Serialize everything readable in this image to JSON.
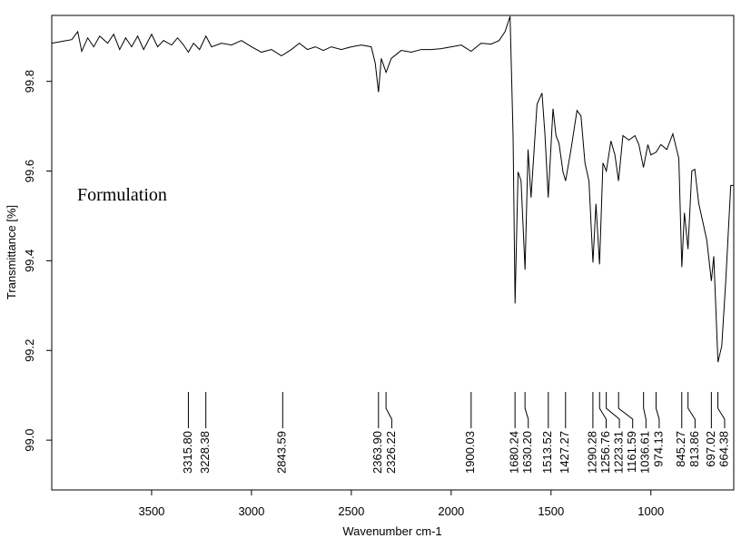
{
  "chart_data": {
    "type": "line",
    "annotation": "Formulation",
    "x_label": "Wavenumber cm-1",
    "y_label": "Transmittance [%]",
    "xlim": [
      4000,
      585
    ],
    "ylim": [
      98.889,
      99.947
    ],
    "xticks": [
      3500,
      3000,
      2500,
      2000,
      1500,
      1000
    ],
    "yticks": [
      {
        "value": 99,
        "label": "99.0"
      },
      99.2,
      99.4,
      99.6,
      99.8
    ],
    "x": [
      4000,
      3950,
      3900,
      3870,
      3850,
      3820,
      3790,
      3760,
      3720,
      3690,
      3660,
      3630,
      3600,
      3570,
      3540,
      3500,
      3470,
      3440,
      3400,
      3370,
      3340,
      3316,
      3290,
      3260,
      3228,
      3200,
      3150,
      3100,
      3050,
      3000,
      2950,
      2900,
      2850,
      2800,
      2760,
      2720,
      2680,
      2640,
      2600,
      2550,
      2500,
      2450,
      2400,
      2380,
      2364,
      2350,
      2326,
      2300,
      2250,
      2200,
      2150,
      2100,
      2050,
      2000,
      1950,
      1900,
      1850,
      1800,
      1760,
      1730,
      1705,
      1690,
      1680,
      1665,
      1650,
      1630,
      1615,
      1600,
      1570,
      1545,
      1530,
      1514,
      1490,
      1475,
      1460,
      1440,
      1427,
      1400,
      1370,
      1350,
      1330,
      1310,
      1290,
      1275,
      1257,
      1240,
      1223,
      1200,
      1180,
      1162,
      1140,
      1110,
      1080,
      1060,
      1037,
      1015,
      1000,
      974,
      950,
      920,
      890,
      860,
      845,
      832,
      814,
      795,
      780,
      760,
      740,
      720,
      697,
      685,
      664,
      645,
      625,
      600,
      585
    ],
    "series": [
      {
        "color": "#000000",
        "values": [
          99.885,
          99.889,
          99.893,
          99.911,
          99.867,
          99.897,
          99.877,
          99.901,
          99.885,
          99.905,
          99.871,
          99.897,
          99.877,
          99.901,
          99.871,
          99.905,
          99.877,
          99.891,
          99.881,
          99.897,
          99.881,
          99.865,
          99.885,
          99.871,
          99.901,
          99.877,
          99.885,
          99.881,
          99.891,
          99.877,
          99.865,
          99.871,
          99.857,
          99.871,
          99.885,
          99.871,
          99.877,
          99.869,
          99.877,
          99.871,
          99.877,
          99.881,
          99.877,
          99.84,
          99.776,
          99.851,
          99.82,
          99.851,
          99.869,
          99.865,
          99.871,
          99.871,
          99.873,
          99.877,
          99.881,
          99.867,
          99.885,
          99.883,
          99.891,
          99.911,
          99.945,
          99.679,
          99.305,
          99.598,
          99.578,
          99.38,
          99.648,
          99.541,
          99.749,
          99.774,
          99.679,
          99.541,
          99.739,
          99.679,
          99.662,
          99.598,
          99.578,
          99.648,
          99.735,
          99.723,
          99.618,
          99.578,
          99.396,
          99.527,
          99.392,
          99.618,
          99.6,
          99.667,
          99.636,
          99.578,
          99.679,
          99.669,
          99.679,
          99.659,
          99.608,
          99.659,
          99.636,
          99.642,
          99.659,
          99.648,
          99.683,
          99.628,
          99.386,
          99.507,
          99.426,
          99.6,
          99.604,
          99.527,
          99.487,
          99.446,
          99.355,
          99.41,
          99.174,
          99.21,
          99.355,
          99.568,
          99.568
        ]
      }
    ],
    "peaks": [
      {
        "value": 3315.8,
        "label": "3315.80"
      },
      {
        "value": 3228.38,
        "label": "3228.38"
      },
      {
        "value": 2843.59,
        "label": "2843.59"
      },
      {
        "value": 2363.9,
        "label": "2363.90"
      },
      {
        "value": 2326.22,
        "label": "2326.22"
      },
      {
        "value": 1900.03,
        "label": "1900.03"
      },
      {
        "value": 1680.24,
        "label": "1680.24"
      },
      {
        "value": 1630.2,
        "label": "1630.20"
      },
      {
        "value": 1513.52,
        "label": "1513.52"
      },
      {
        "value": 1427.27,
        "label": "1427.27"
      },
      {
        "value": 1290.28,
        "label": "1290.28"
      },
      {
        "value": 1256.76,
        "label": "1256.76"
      },
      {
        "value": 1223.31,
        "label": "1223.31"
      },
      {
        "value": 1161.59,
        "label": "1161.59"
      },
      {
        "value": 1036.61,
        "label": "1036.61"
      },
      {
        "value": 974.13,
        "label": "974.13"
      },
      {
        "value": 845.27,
        "label": "845.27"
      },
      {
        "value": 813.86,
        "label": "813.86"
      },
      {
        "value": 697.02,
        "label": "697.02"
      },
      {
        "value": 664.38,
        "label": "664.38"
      }
    ]
  }
}
